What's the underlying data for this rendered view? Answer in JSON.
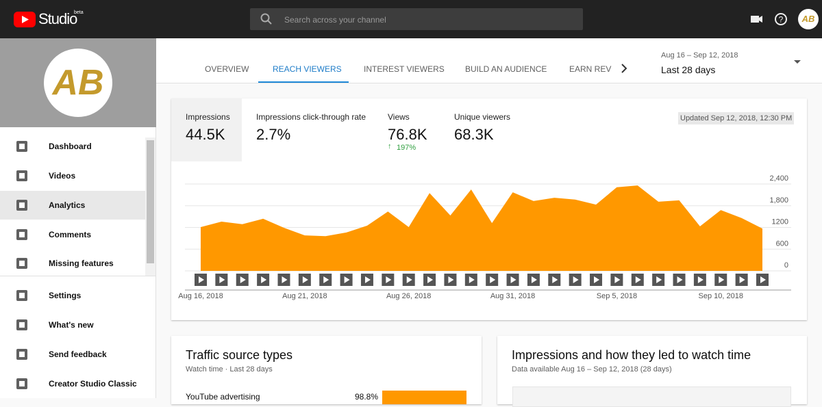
{
  "header": {
    "logo": "Studio",
    "badge": "beta",
    "search_placeholder": "Search across your channel"
  },
  "sidebar": {
    "avatar": "AB",
    "nav": [
      "Dashboard",
      "Videos",
      "Analytics",
      "Comments",
      "Missing features"
    ],
    "nav2": [
      "Settings",
      "What's new",
      "Send feedback",
      "Creator Studio Classic"
    ]
  },
  "tabs": [
    "OVERVIEW",
    "REACH VIEWERS",
    "INTEREST VIEWERS",
    "BUILD AN AUDIENCE",
    "EARN REV"
  ],
  "date_range": {
    "range": "Aug 16 – Sep 12, 2018",
    "label": "Last 28 days"
  },
  "metrics": [
    {
      "label": "Impressions",
      "value": "44.5K"
    },
    {
      "label": "Impressions click-through rate",
      "value": "2.7%"
    },
    {
      "label": "Views",
      "value": "76.8K",
      "change": "197%"
    },
    {
      "label": "Unique viewers",
      "value": "68.3K"
    }
  ],
  "updated": "Updated Sep 12, 2018, 12:30 PM",
  "chart_data": {
    "type": "area",
    "color": "#ff9800",
    "categories": [
      "Aug 16, 2018",
      null,
      null,
      null,
      null,
      "Aug 21, 2018",
      null,
      null,
      null,
      null,
      "Aug 26, 2018",
      null,
      null,
      null,
      null,
      "Aug 31, 2018",
      null,
      null,
      null,
      null,
      "Sep 5, 2018",
      null,
      null,
      null,
      null,
      "Sep 10, 2018",
      null,
      null
    ],
    "values": [
      1210,
      1360,
      1290,
      1440,
      1190,
      980,
      960,
      1060,
      1250,
      1640,
      1210,
      2150,
      1530,
      2250,
      1320,
      2170,
      1930,
      2020,
      1970,
      1830,
      2310,
      2360,
      1910,
      1950,
      1230,
      1680,
      1460,
      1170
    ],
    "ylim": [
      0,
      2400
    ],
    "yticks": [
      0,
      600,
      1200,
      {
        "value": 1800,
        "label": "1,800"
      },
      {
        "value": 2400,
        "label": "2,400"
      }
    ],
    "grid": true
  },
  "traffic_card": {
    "title": "Traffic source types",
    "subtitle": "Watch time · Last 28 days",
    "rows": [
      {
        "label": "YouTube advertising",
        "value": "98.8%"
      }
    ]
  },
  "impressions_card": {
    "title": "Impressions and how they led to watch time",
    "subtitle": "Data available Aug 16 – Sep 12, 2018 (28 days)"
  }
}
